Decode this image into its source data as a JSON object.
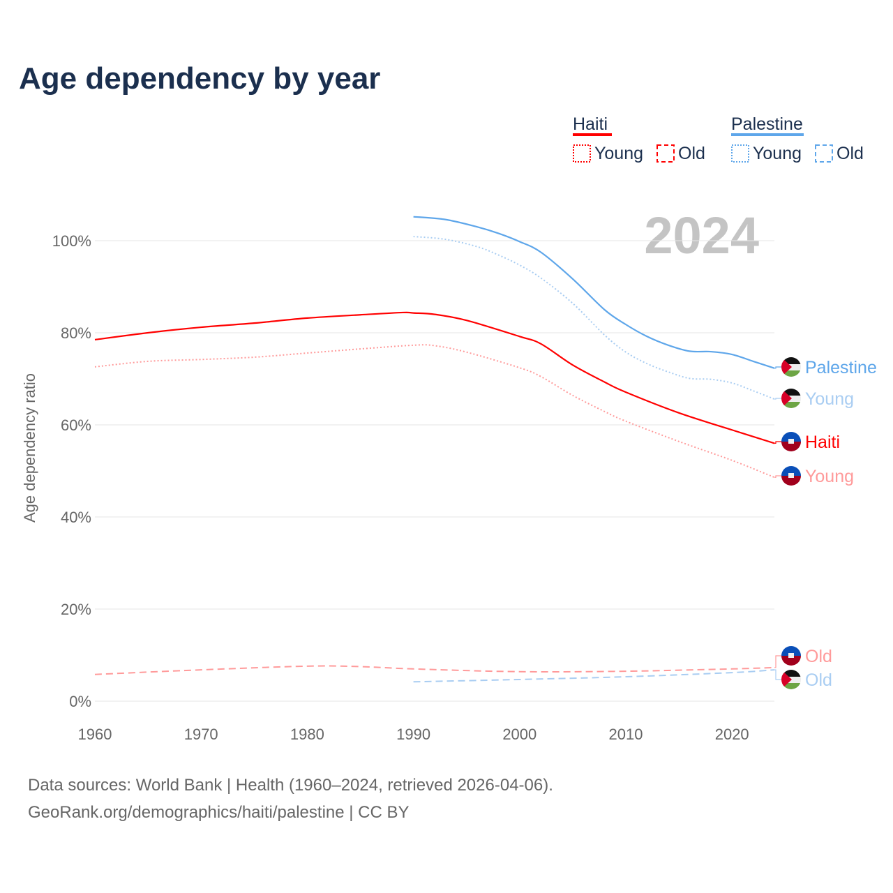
{
  "chart_data": {
    "type": "line",
    "title": "Age dependency by year",
    "ylabel": "Age dependency ratio",
    "xlabel": "",
    "xlim": [
      1960,
      2024
    ],
    "ylim": [
      0,
      110
    ],
    "x_ticks": [
      1960,
      1970,
      1980,
      1990,
      2000,
      2010,
      2020
    ],
    "x_tick_labels": [
      "1960",
      "1970",
      "1980",
      "1990",
      "2000",
      "2010",
      "2020"
    ],
    "y_ticks": [
      0,
      20,
      40,
      60,
      80,
      100
    ],
    "y_tick_labels": [
      "0%",
      "20%",
      "40%",
      "60%",
      "80%",
      "100%"
    ],
    "grid": true,
    "year_watermark": "2024",
    "legend": {
      "placement": "top-right",
      "groups": [
        {
          "name": "Haiti",
          "color": "#ff0000",
          "items": [
            "Young",
            "Old"
          ]
        },
        {
          "name": "Palestine",
          "color": "#5ea6ea",
          "items": [
            "Young",
            "Old"
          ]
        }
      ]
    },
    "series": [
      {
        "name": "Haiti",
        "label": "Haiti",
        "country": "haiti",
        "style": "solid",
        "color": "#ff0000",
        "x": [
          1960,
          1965,
          1970,
          1975,
          1980,
          1985,
          1989,
          1990,
          1992,
          1995,
          2000,
          2002,
          2005,
          2008,
          2010,
          2015,
          2020,
          2024
        ],
        "y": [
          78.5,
          80.0,
          81.2,
          82.1,
          83.2,
          83.9,
          84.4,
          84.3,
          84.0,
          82.7,
          79.2,
          77.6,
          73.0,
          69.3,
          67.1,
          62.6,
          58.9,
          56.0
        ]
      },
      {
        "name": "Haiti Young",
        "label": "Young",
        "country": "haiti",
        "style": "dotted",
        "color": "#ff9a9a",
        "x": [
          1960,
          1965,
          1970,
          1975,
          1980,
          1985,
          1990,
          1992,
          1995,
          2000,
          2002,
          2005,
          2008,
          2010,
          2015,
          2020,
          2024
        ],
        "y": [
          72.6,
          73.8,
          74.2,
          74.7,
          75.6,
          76.5,
          77.3,
          77.2,
          75.8,
          72.4,
          70.5,
          66.4,
          62.9,
          60.8,
          56.4,
          52.3,
          48.6
        ]
      },
      {
        "name": "Haiti Old",
        "label": "Old",
        "country": "haiti",
        "style": "dashed",
        "color": "#ff9a9a",
        "x": [
          1960,
          1970,
          1980,
          1985,
          1990,
          2000,
          2010,
          2020,
          2024
        ],
        "y": [
          5.8,
          6.8,
          7.6,
          7.5,
          7.0,
          6.4,
          6.5,
          7.0,
          7.3
        ]
      },
      {
        "name": "Palestine",
        "label": "Palestine",
        "country": "palestine",
        "style": "solid",
        "color": "#5ea6ea",
        "x": [
          1990,
          1993,
          1996,
          1998,
          2000,
          2002,
          2005,
          2008,
          2010,
          2012,
          2014,
          2016,
          2018,
          2020,
          2022,
          2024
        ],
        "y": [
          105.2,
          104.6,
          103.0,
          101.6,
          99.8,
          97.5,
          91.7,
          85.0,
          81.8,
          79.2,
          77.3,
          76.0,
          75.9,
          75.3,
          73.8,
          72.3
        ]
      },
      {
        "name": "Palestine Young",
        "label": "Young",
        "country": "palestine",
        "style": "dotted",
        "color": "#a9cdf2",
        "x": [
          1990,
          1993,
          1996,
          1998,
          2000,
          2002,
          2005,
          2008,
          2010,
          2012,
          2014,
          2016,
          2018,
          2020,
          2022,
          2024
        ],
        "y": [
          100.9,
          100.3,
          98.7,
          96.9,
          94.7,
          91.9,
          86.4,
          79.5,
          75.8,
          73.3,
          71.5,
          70.1,
          69.9,
          69.1,
          67.4,
          65.6
        ]
      },
      {
        "name": "Palestine Old",
        "label": "Old",
        "country": "palestine",
        "style": "dashed",
        "color": "#a9cdf2",
        "x": [
          1990,
          2000,
          2010,
          2020,
          2024
        ],
        "y": [
          4.2,
          4.7,
          5.3,
          6.2,
          6.8
        ]
      }
    ]
  },
  "footer": {
    "line1": "Data sources: World Bank | Health (1960–2024, retrieved 2026-04-06).",
    "line2": "GeoRank.org/demographics/haiti/palestine | CC BY"
  }
}
